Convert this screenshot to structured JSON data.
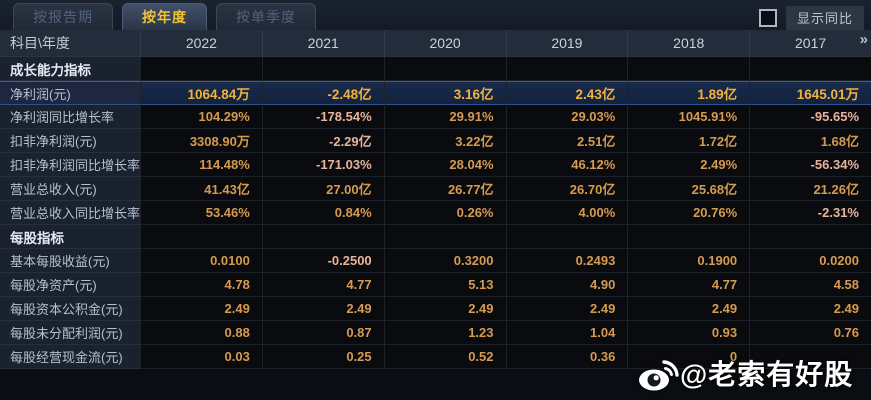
{
  "tabs": [
    {
      "key": "by-report-period",
      "label": "按报告期",
      "active": false
    },
    {
      "key": "by-year",
      "label": "按年度",
      "active": true
    },
    {
      "key": "by-quarter",
      "label": "按单季度",
      "active": false
    }
  ],
  "controls": {
    "toggle_label": "显示同比",
    "checkbox_checked": false
  },
  "table": {
    "corner_label": "科目\\年度",
    "years": [
      "2022",
      "2021",
      "2020",
      "2019",
      "2018",
      "2017"
    ],
    "more_indicator": "»",
    "rows": [
      {
        "type": "section",
        "label": "成长能力指标"
      },
      {
        "type": "data",
        "label": "净利润(元)",
        "highlight": true,
        "values": [
          "1064.84万",
          "-2.48亿",
          "3.16亿",
          "2.43亿",
          "1.89亿",
          "1645.01万"
        ]
      },
      {
        "type": "data",
        "label": "净利润同比增长率",
        "values": [
          "104.29%",
          "-178.54%",
          "29.91%",
          "29.03%",
          "1045.91%",
          "-95.65%"
        ]
      },
      {
        "type": "data",
        "label": "扣非净利润(元)",
        "values": [
          "3308.90万",
          "-2.29亿",
          "3.22亿",
          "2.51亿",
          "1.72亿",
          "1.68亿"
        ]
      },
      {
        "type": "data",
        "label": "扣非净利润同比增长率",
        "values": [
          "114.48%",
          "-171.03%",
          "28.04%",
          "46.12%",
          "2.49%",
          "-56.34%"
        ]
      },
      {
        "type": "data",
        "label": "营业总收入(元)",
        "values": [
          "41.43亿",
          "27.00亿",
          "26.77亿",
          "26.70亿",
          "25.68亿",
          "21.26亿"
        ]
      },
      {
        "type": "data",
        "label": "营业总收入同比增长率",
        "values": [
          "53.46%",
          "0.84%",
          "0.26%",
          "4.00%",
          "20.76%",
          "-2.31%"
        ]
      },
      {
        "type": "section",
        "label": "每股指标"
      },
      {
        "type": "data",
        "label": "基本每股收益(元)",
        "values": [
          "0.0100",
          "-0.2500",
          "0.3200",
          "0.2493",
          "0.1900",
          "0.0200"
        ]
      },
      {
        "type": "data",
        "label": "每股净资产(元)",
        "values": [
          "4.78",
          "4.77",
          "5.13",
          "4.90",
          "4.77",
          "4.58"
        ]
      },
      {
        "type": "data",
        "label": "每股资本公积金(元)",
        "values": [
          "2.49",
          "2.49",
          "2.49",
          "2.49",
          "2.49",
          "2.49"
        ]
      },
      {
        "type": "data",
        "label": "每股未分配利润(元)",
        "values": [
          "0.88",
          "0.87",
          "1.23",
          "1.04",
          "0.93",
          "0.76"
        ]
      },
      {
        "type": "data",
        "label": "每股经营现金流(元)",
        "values": [
          "0.03",
          "0.25",
          "0.52",
          "0.36",
          "0",
          ""
        ]
      }
    ]
  },
  "watermark": {
    "text": "@老索有好股",
    "icon": "weibo-logo"
  },
  "colors": {
    "tab_active_text": "#f1c232",
    "value_amber": "#d69a50",
    "negative_value": "#e7b49b",
    "highlight_gold": "#f2b23c",
    "highlight_row_bg": "#182a4b"
  }
}
